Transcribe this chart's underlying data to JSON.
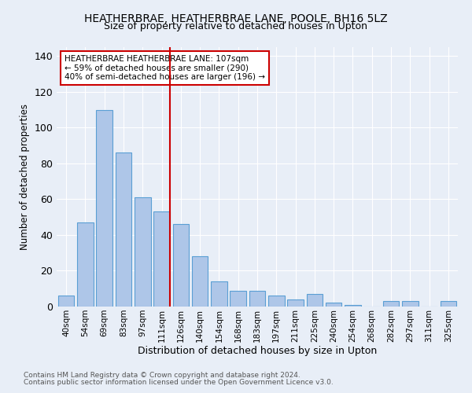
{
  "title": "HEATHERBRAE, HEATHERBRAE LANE, POOLE, BH16 5LZ",
  "subtitle": "Size of property relative to detached houses in Upton",
  "xlabel": "Distribution of detached houses by size in Upton",
  "ylabel": "Number of detached properties",
  "footnote1": "Contains HM Land Registry data © Crown copyright and database right 2024.",
  "footnote2": "Contains public sector information licensed under the Open Government Licence v3.0.",
  "categories": [
    "40sqm",
    "54sqm",
    "69sqm",
    "83sqm",
    "97sqm",
    "111sqm",
    "126sqm",
    "140sqm",
    "154sqm",
    "168sqm",
    "183sqm",
    "197sqm",
    "211sqm",
    "225sqm",
    "240sqm",
    "254sqm",
    "268sqm",
    "282sqm",
    "297sqm",
    "311sqm",
    "325sqm"
  ],
  "values": [
    6,
    47,
    110,
    86,
    61,
    53,
    46,
    28,
    14,
    9,
    9,
    6,
    4,
    7,
    2,
    1,
    0,
    3,
    3,
    0,
    3
  ],
  "bar_color": "#aec6e8",
  "bar_edge_color": "#5a9fd4",
  "highlight_index": 5,
  "highlight_line_color": "#cc0000",
  "annotation_text": "HEATHERBRAE HEATHERBRAE LANE: 107sqm\n← 59% of detached houses are smaller (290)\n40% of semi-detached houses are larger (196) →",
  "annotation_box_color": "#ffffff",
  "annotation_box_edge_color": "#cc0000",
  "ylim": [
    0,
    145
  ],
  "background_color": "#e8eef7",
  "grid_color": "#ffffff"
}
